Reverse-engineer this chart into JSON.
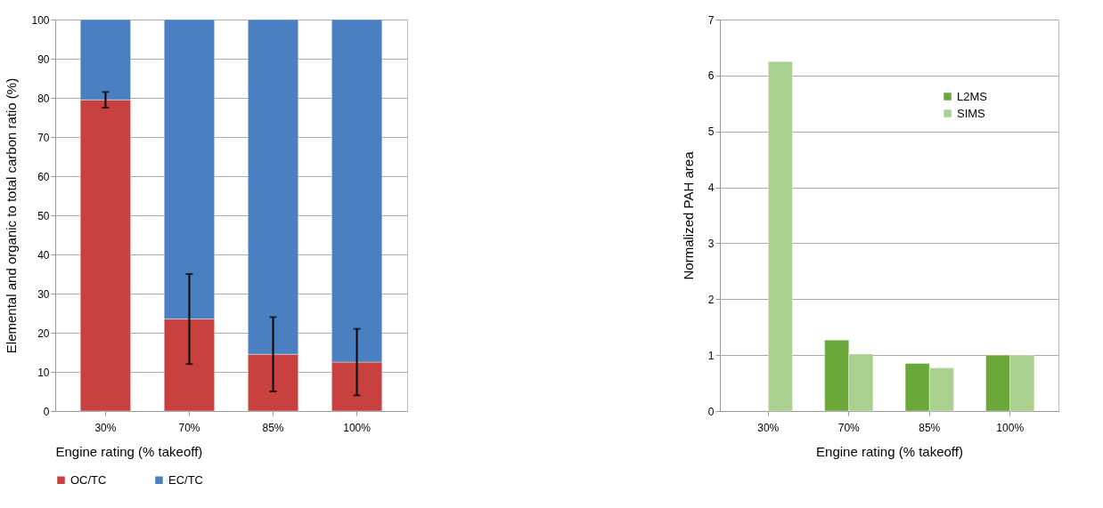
{
  "chart_data": [
    {
      "type": "bar",
      "stacked": true,
      "categories": [
        "30%",
        "70%",
        "85%",
        "100%"
      ],
      "xlabel": "Engine rating (% takeoff)",
      "ylabel": "Elemental and organic to total carbon ratio (%)",
      "ylim": [
        0,
        100
      ],
      "yticks": [
        0,
        10,
        20,
        30,
        40,
        50,
        60,
        70,
        80,
        90,
        100
      ],
      "grid": "y",
      "legend": "bottom",
      "series": [
        {
          "name": "OC/TC",
          "color": "#c8413f",
          "values": [
            79.5,
            23.5,
            14.5,
            12.5
          ],
          "errors": [
            [
              77.5,
              81.5
            ],
            [
              12,
              35
            ],
            [
              5,
              24
            ],
            [
              4,
              21
            ]
          ]
        },
        {
          "name": "EC/TC",
          "color": "#4a7fc1",
          "values": [
            20.5,
            76.5,
            85.5,
            87.5
          ]
        }
      ]
    },
    {
      "type": "bar",
      "categories": [
        "30%",
        "70%",
        "85%",
        "100%"
      ],
      "xlabel": "Engine rating (% takeoff)",
      "ylabel": "Normalized PAH area",
      "ylim": [
        0,
        7
      ],
      "yticks": [
        0,
        1,
        2,
        3,
        4,
        5,
        6,
        7
      ],
      "grid": "y",
      "legend": "top right",
      "series": [
        {
          "name": "L2MS",
          "color": "#6aa83a",
          "values": [
            null,
            1.27,
            0.85,
            1.0
          ]
        },
        {
          "name": "SIMS",
          "color": "#a9d08e",
          "values": [
            6.25,
            1.02,
            0.77,
            1.0
          ]
        }
      ]
    }
  ]
}
